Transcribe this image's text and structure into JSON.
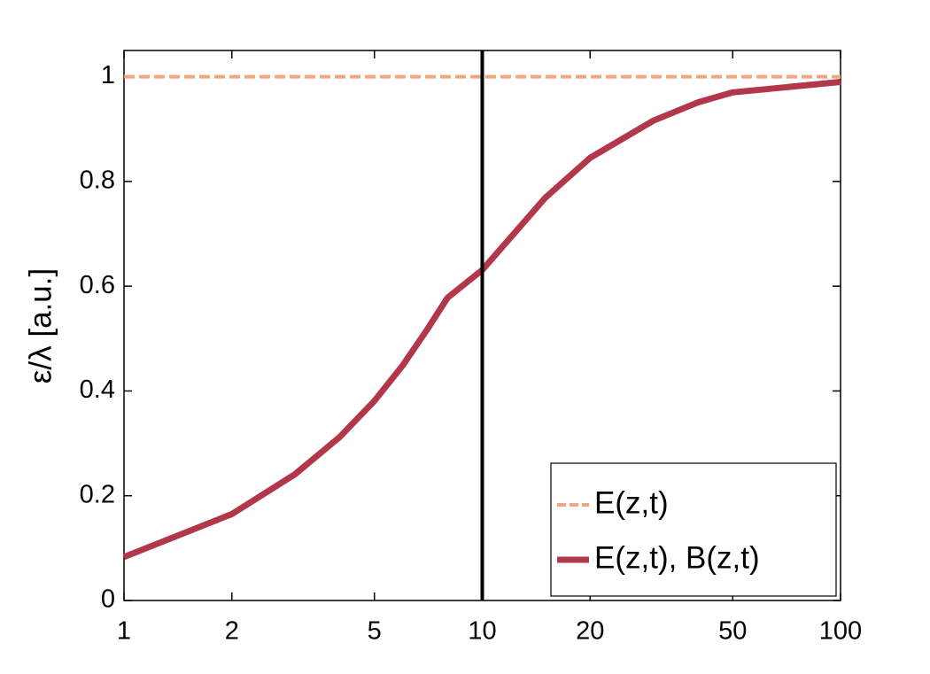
{
  "chart_data": {
    "type": "line",
    "ylabel": "ε/λ [a.u.]",
    "xscale": "log",
    "xlim": [
      1,
      100
    ],
    "xticks": [
      1,
      2,
      5,
      10,
      20,
      50,
      100
    ],
    "ylim": [
      0,
      1.05
    ],
    "yticks": [
      0,
      0.2,
      0.4,
      0.6,
      0.8,
      1
    ],
    "grid": false,
    "legend": "lower right",
    "vline": 10,
    "vline_color": "#000000",
    "series": [
      {
        "name": "E(z,t)",
        "color": "#f4a582",
        "dash": true,
        "x": [
          1,
          100
        ],
        "values": [
          1,
          1
        ]
      },
      {
        "name": "E(z,t), B(z,t)",
        "color": "#b2374a",
        "dash": false,
        "x": [
          1,
          2,
          3,
          4,
          5,
          6,
          7,
          8,
          10,
          15,
          20,
          30,
          40,
          50,
          100
        ],
        "values": [
          0.083,
          0.165,
          0.241,
          0.312,
          0.381,
          0.449,
          0.516,
          0.578,
          0.631,
          0.769,
          0.845,
          0.916,
          0.951,
          0.97,
          0.99
        ]
      }
    ]
  }
}
